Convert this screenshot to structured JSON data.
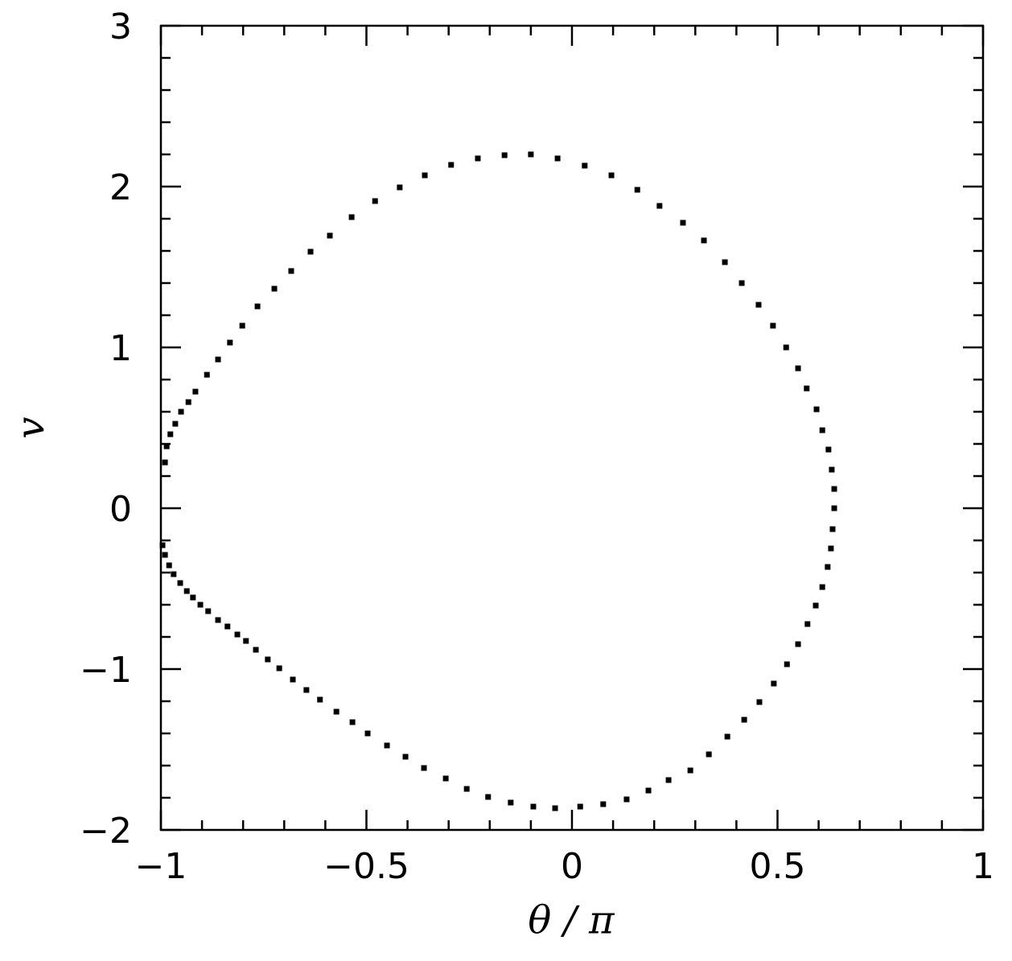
{
  "chart_data": {
    "type": "scatter",
    "x_label": "θ / π",
    "y_label": "v",
    "xlim": [
      -1,
      1
    ],
    "ylim": [
      -2,
      3
    ],
    "xticks": [
      {
        "value": -1,
        "label": "−1"
      },
      {
        "value": -0.5,
        "label": "−0.5"
      },
      0,
      0.5,
      1
    ],
    "yticks": [
      {
        "value": -2,
        "label": "−2"
      },
      {
        "value": -1,
        "label": "−1"
      },
      0,
      1,
      2,
      3
    ],
    "color": "#000000",
    "x": [
      -0.99,
      -0.986,
      -0.977,
      -0.965,
      -0.951,
      -0.933,
      -0.916,
      -0.888,
      -0.861,
      -0.832,
      -0.802,
      -0.765,
      -0.724,
      -0.683,
      -0.636,
      -0.589,
      -0.536,
      -0.479,
      -0.419,
      -0.358,
      -0.294,
      -0.229,
      -0.164,
      -0.1,
      -0.035,
      0.031,
      0.096,
      0.159,
      0.213,
      0.27,
      0.321,
      0.372,
      0.413,
      0.454,
      0.489,
      0.521,
      0.55,
      0.571,
      0.595,
      0.609,
      0.624,
      0.632,
      0.638,
      0.638,
      0.634,
      0.63,
      0.622,
      0.609,
      0.593,
      0.573,
      0.55,
      0.523,
      0.491,
      0.456,
      0.419,
      0.378,
      0.333,
      0.288,
      0.235,
      0.186,
      0.133,
      0.076,
      0.02,
      -0.041,
      -0.094,
      -0.149,
      -0.204,
      -0.256,
      -0.307,
      -0.36,
      -0.405,
      -0.45,
      -0.497,
      -0.534,
      -0.573,
      -0.613,
      -0.646,
      -0.679,
      -0.712,
      -0.74,
      -0.769,
      -0.793,
      -0.814,
      -0.838,
      -0.861,
      -0.885,
      -0.904,
      -0.922,
      -0.937,
      -0.953,
      -0.969,
      -0.98,
      -0.99,
      -0.996
    ],
    "values": [
      0.285,
      0.385,
      0.46,
      0.525,
      0.6,
      0.66,
      0.725,
      0.83,
      0.925,
      1.03,
      1.135,
      1.255,
      1.365,
      1.475,
      1.595,
      1.695,
      1.81,
      1.91,
      1.995,
      2.07,
      2.135,
      2.175,
      2.195,
      2.2,
      2.175,
      2.13,
      2.07,
      1.98,
      1.88,
      1.775,
      1.665,
      1.53,
      1.4,
      1.265,
      1.135,
      1.0,
      0.87,
      0.745,
      0.615,
      0.485,
      0.365,
      0.24,
      0.12,
      0.0,
      -0.13,
      -0.25,
      -0.365,
      -0.49,
      -0.605,
      -0.72,
      -0.845,
      -0.97,
      -1.09,
      -1.205,
      -1.315,
      -1.42,
      -1.53,
      -1.63,
      -1.69,
      -1.755,
      -1.81,
      -1.84,
      -1.855,
      -1.865,
      -1.855,
      -1.83,
      -1.795,
      -1.745,
      -1.68,
      -1.615,
      -1.545,
      -1.475,
      -1.4,
      -1.33,
      -1.265,
      -1.19,
      -1.13,
      -1.065,
      -0.995,
      -0.94,
      -0.88,
      -0.825,
      -0.785,
      -0.735,
      -0.695,
      -0.64,
      -0.6,
      -0.555,
      -0.515,
      -0.465,
      -0.41,
      -0.355,
      -0.29,
      -0.23
    ]
  }
}
